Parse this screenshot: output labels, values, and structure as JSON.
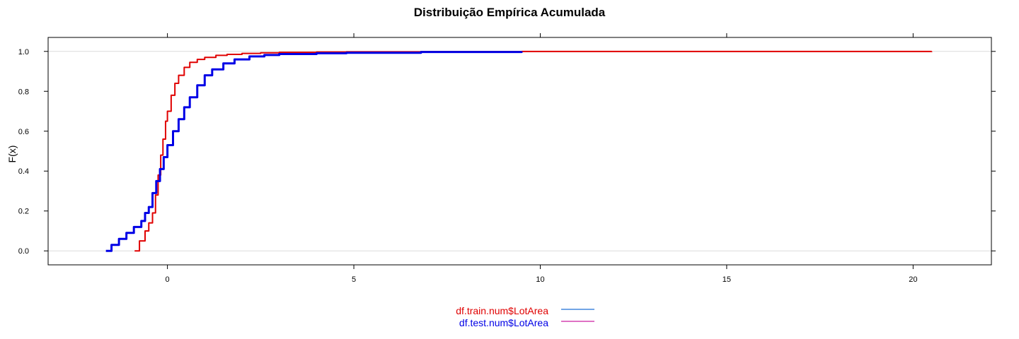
{
  "chart_data": {
    "type": "line",
    "title": "Distribuição Empírica Acumulada",
    "xlabel": "",
    "ylabel": "F(x)",
    "xlim": [
      -3.2,
      22.1
    ],
    "ylim": [
      -0.07,
      1.07
    ],
    "x_ticks": [
      0,
      5,
      10,
      15,
      20
    ],
    "x_tick_labels": [
      "0",
      "5",
      "10",
      "15",
      "20"
    ],
    "y_ticks": [
      0.0,
      0.2,
      0.4,
      0.6,
      0.8,
      1.0
    ],
    "y_tick_labels": [
      "0.0",
      "0.2",
      "0.4",
      "0.6",
      "0.8",
      "1.0"
    ],
    "reference_lines_y": [
      0,
      1
    ],
    "grid": false,
    "legend_position": "bottom",
    "series": [
      {
        "name": "df.train.num$LotArea",
        "color": "#e00000",
        "x": [
          -0.88,
          -0.75,
          -0.6,
          -0.5,
          -0.4,
          -0.32,
          -0.25,
          -0.18,
          -0.12,
          -0.05,
          0.0,
          0.1,
          0.2,
          0.3,
          0.45,
          0.6,
          0.8,
          1.0,
          1.3,
          1.6,
          2.0,
          2.5,
          3.0,
          4.0,
          4.8,
          6.8,
          9.5,
          20.5
        ],
        "values": [
          0.0,
          0.05,
          0.1,
          0.14,
          0.19,
          0.28,
          0.38,
          0.48,
          0.56,
          0.65,
          0.7,
          0.78,
          0.84,
          0.88,
          0.92,
          0.945,
          0.96,
          0.97,
          0.98,
          0.985,
          0.99,
          0.993,
          0.995,
          0.997,
          0.998,
          0.999,
          0.9995,
          1.0
        ],
        "legend_swatch_color": "#1f6fd6"
      },
      {
        "name": "df.test.num$LotArea",
        "color": "#0000e6",
        "x": [
          -1.65,
          -1.5,
          -1.3,
          -1.1,
          -0.9,
          -0.7,
          -0.6,
          -0.5,
          -0.4,
          -0.3,
          -0.2,
          -0.1,
          0.0,
          0.15,
          0.3,
          0.45,
          0.6,
          0.8,
          1.0,
          1.2,
          1.5,
          1.8,
          2.2,
          2.6,
          3.0,
          4.0,
          4.8,
          6.8,
          9.5
        ],
        "values": [
          0.0,
          0.03,
          0.06,
          0.09,
          0.12,
          0.15,
          0.19,
          0.22,
          0.29,
          0.35,
          0.41,
          0.47,
          0.53,
          0.6,
          0.66,
          0.72,
          0.77,
          0.83,
          0.88,
          0.91,
          0.94,
          0.96,
          0.975,
          0.982,
          0.987,
          0.991,
          0.993,
          0.997,
          1.0
        ],
        "legend_swatch_color": "#cc1fa0"
      }
    ]
  }
}
